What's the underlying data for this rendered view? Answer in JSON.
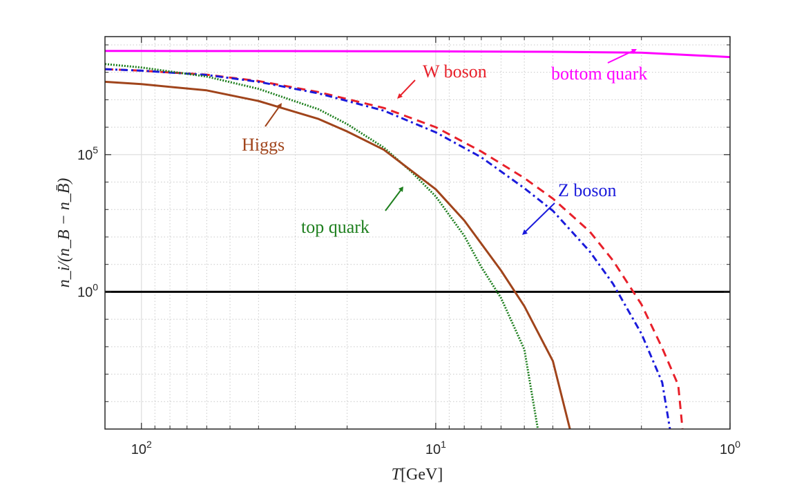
{
  "chart_data": {
    "type": "line",
    "xlabel": "T[GeV]",
    "ylabel": "n_i/(n_B − n_B̄)",
    "x_scale": "log",
    "x_reversed": true,
    "y_scale": "log",
    "xlim": [
      1,
      133
    ],
    "ylim": [
      1e-05,
      2000000000
    ],
    "grid": true,
    "x_ticks": [
      {
        "value": 100,
        "base": "10",
        "exp": "2"
      },
      {
        "value": 10,
        "base": "10",
        "exp": "1"
      },
      {
        "value": 1,
        "base": "10",
        "exp": "0"
      }
    ],
    "y_ticks": [
      {
        "value": 1,
        "base": "10",
        "exp": "0"
      },
      {
        "value": 100000,
        "base": "10",
        "exp": "5"
      }
    ],
    "reference_line": {
      "y": 1,
      "color": "#000000"
    },
    "series": [
      {
        "name": "bottom quark",
        "color": "#ff00ff",
        "dash": "solid",
        "points": [
          [
            133,
            600000000
          ],
          [
            100,
            600000000
          ],
          [
            40,
            595000000
          ],
          [
            10,
            580000000
          ],
          [
            4,
            560000000
          ],
          [
            2,
            520000000
          ],
          [
            1,
            360000000
          ]
        ]
      },
      {
        "name": "W boson",
        "color": "#e8202a",
        "dash": "dashed",
        "points": [
          [
            133,
            130000000
          ],
          [
            100,
            115000000
          ],
          [
            60,
            82000000
          ],
          [
            40,
            48000000
          ],
          [
            25,
            19000000
          ],
          [
            15,
            5000000
          ],
          [
            10,
            1000000
          ],
          [
            7,
            130000
          ],
          [
            5,
            14000
          ],
          [
            4,
            2500
          ],
          [
            3,
            160
          ],
          [
            2.5,
            14
          ],
          [
            2,
            0.35
          ],
          [
            1.7,
            0.009
          ],
          [
            1.5,
            0.0004
          ],
          [
            1.45,
            1e-05
          ]
        ]
      },
      {
        "name": "Z boson",
        "color": "#1a1adb",
        "dash": "dashdot",
        "points": [
          [
            133,
            130000000
          ],
          [
            100,
            115000000
          ],
          [
            60,
            80000000
          ],
          [
            40,
            45000000
          ],
          [
            25,
            17000000
          ],
          [
            15,
            4000000
          ],
          [
            10,
            650000
          ],
          [
            7,
            80000
          ],
          [
            5,
            6000
          ],
          [
            4,
            900
          ],
          [
            3,
            30
          ],
          [
            2.5,
            2
          ],
          [
            2,
            0.03
          ],
          [
            1.7,
            0.0005
          ],
          [
            1.6,
            1e-05
          ]
        ]
      },
      {
        "name": "top quark",
        "color": "#1e7f1e",
        "dash": "dotted",
        "points": [
          [
            133,
            200000000
          ],
          [
            100,
            150000000
          ],
          [
            60,
            70000000
          ],
          [
            40,
            25000000
          ],
          [
            25,
            4500000
          ],
          [
            20,
            1300000
          ],
          [
            15,
            180000
          ],
          [
            12,
            22000
          ],
          [
            10,
            3000
          ],
          [
            8,
            110
          ],
          [
            7,
            8
          ],
          [
            6,
            0.6
          ],
          [
            5,
            0.008
          ],
          [
            4.5,
            1e-05
          ]
        ]
      },
      {
        "name": "Higgs",
        "color": "#a0441b",
        "dash": "solid",
        "points": [
          [
            133,
            45000000
          ],
          [
            100,
            37000000
          ],
          [
            60,
            22000000
          ],
          [
            40,
            9000000
          ],
          [
            25,
            2000000
          ],
          [
            20,
            700000
          ],
          [
            15,
            150000
          ],
          [
            10,
            5500
          ],
          [
            8,
            400
          ],
          [
            6,
            6
          ],
          [
            5,
            0.3
          ],
          [
            4,
            0.003
          ],
          [
            3.5,
            1e-05
          ]
        ]
      }
    ]
  }
}
